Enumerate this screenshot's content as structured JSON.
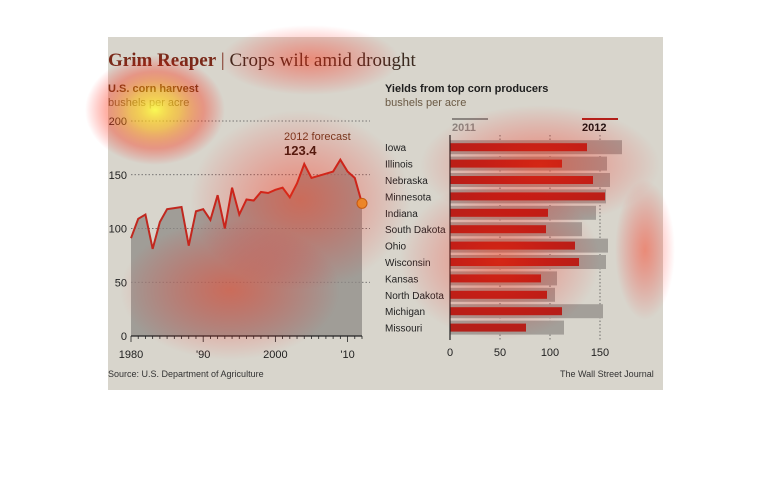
{
  "header": {
    "title_bold": "Grim Reaper",
    "title_sep": "|",
    "title_rest": "Crops wilt amid drought"
  },
  "left": {
    "subhead": "U.S. corn harvest",
    "unit": "bushels per acre",
    "forecast_label": "2012 forecast",
    "forecast_value": "123.4"
  },
  "right": {
    "subhead": "Yields from top corn producers",
    "unit": "bushels per acre",
    "legend_2011": "2011",
    "legend_2012": "2012"
  },
  "footer": {
    "source": "Source: U.S. Department of Agriculture",
    "credit": "The Wall Street Journal"
  },
  "colors": {
    "panel": "#d8d5cc",
    "line": "#c0281f",
    "bar2012": "#b2201a",
    "bar2011": "#a39f99"
  },
  "chart_data": [
    {
      "type": "area",
      "title": "U.S. corn harvest",
      "ylabel": "bushels per acre",
      "x_ticks": [
        "1980",
        "'90",
        "2000",
        "'10"
      ],
      "y_ticks": [
        "0",
        "50",
        "100",
        "150",
        "200"
      ],
      "ylim": [
        0,
        200
      ],
      "xlim": [
        1980,
        2012
      ],
      "x": [
        1980,
        1981,
        1982,
        1983,
        1984,
        1985,
        1986,
        1987,
        1988,
        1989,
        1990,
        1991,
        1992,
        1993,
        1994,
        1995,
        1996,
        1997,
        1998,
        1999,
        2000,
        2001,
        2002,
        2003,
        2004,
        2005,
        2006,
        2007,
        2008,
        2009,
        2010,
        2011,
        2012
      ],
      "values": [
        91,
        109,
        113,
        81,
        106,
        118,
        119,
        120,
        84,
        116,
        118,
        108,
        131,
        100,
        138,
        113,
        127,
        126,
        134,
        133,
        136,
        138,
        129,
        142,
        160,
        147,
        149,
        151,
        153,
        164,
        153,
        147,
        123.4
      ],
      "grid": "y"
    },
    {
      "type": "bar",
      "title": "Yields from top corn producers",
      "ylabel": "bushels per acre",
      "x_ticks": [
        "0",
        "50",
        "100",
        "150"
      ],
      "xlim": [
        0,
        175
      ],
      "categories": [
        "Iowa",
        "Illinois",
        "Nebraska",
        "Minnesota",
        "Indiana",
        "South Dakota",
        "Ohio",
        "Wisconsin",
        "Kansas",
        "North Dakota",
        "Michigan",
        "Missouri"
      ],
      "series": [
        {
          "name": "2011",
          "values": [
            172,
            157,
            160,
            156,
            146,
            132,
            158,
            156,
            107,
            105,
            153,
            114
          ]
        },
        {
          "name": "2012",
          "values": [
            137,
            112,
            143,
            155,
            98,
            96,
            125,
            129,
            91,
            97,
            112,
            76
          ]
        }
      ]
    }
  ]
}
